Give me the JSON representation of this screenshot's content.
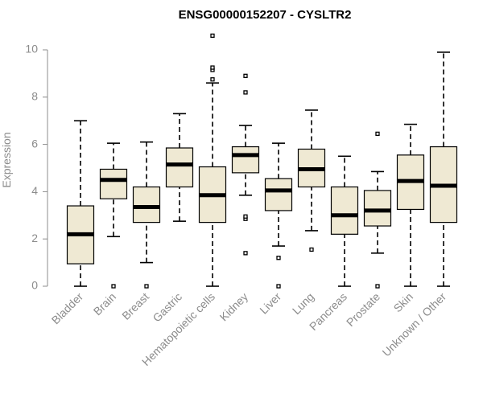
{
  "chart_data": {
    "type": "box",
    "title": "ENSG00000152207 - CYSLTR2",
    "xlabel": "",
    "ylabel": "Expression",
    "ylim": [
      0,
      10
    ],
    "yticks": [
      0,
      2,
      4,
      6,
      8,
      10
    ],
    "box_fill": "#efe9d3",
    "categories": [
      "Bladder",
      "Brain",
      "Breast",
      "Gastric",
      "Hematopoietic cells",
      "Kidney",
      "Liver",
      "Lung",
      "Pancreas",
      "Prostate",
      "Skin",
      "Unknown / Other"
    ],
    "boxes": [
      {
        "category": "Bladder",
        "min": 0.0,
        "q1": 0.95,
        "median": 2.2,
        "q3": 3.4,
        "max": 7.0,
        "outliers": []
      },
      {
        "category": "Brain",
        "min": 2.1,
        "q1": 3.7,
        "median": 4.5,
        "q3": 4.95,
        "max": 6.05,
        "outliers": [
          0.0
        ]
      },
      {
        "category": "Breast",
        "min": 1.0,
        "q1": 2.7,
        "median": 3.35,
        "q3": 4.2,
        "max": 6.1,
        "outliers": [
          0.0
        ]
      },
      {
        "category": "Gastric",
        "min": 2.75,
        "q1": 4.2,
        "median": 5.15,
        "q3": 5.85,
        "max": 7.3,
        "outliers": []
      },
      {
        "category": "Hematopoietic cells",
        "min": 0.0,
        "q1": 2.7,
        "median": 3.85,
        "q3": 5.05,
        "max": 8.6,
        "outliers": [
          8.75,
          9.15,
          9.25,
          10.6
        ]
      },
      {
        "category": "Kidney",
        "min": 3.85,
        "q1": 4.8,
        "median": 5.55,
        "q3": 5.9,
        "max": 6.8,
        "outliers": [
          1.4,
          2.85,
          2.95,
          8.2,
          8.9
        ]
      },
      {
        "category": "Liver",
        "min": 1.7,
        "q1": 3.2,
        "median": 4.05,
        "q3": 4.55,
        "max": 6.05,
        "outliers": [
          0.0,
          1.2
        ]
      },
      {
        "category": "Lung",
        "min": 2.35,
        "q1": 4.2,
        "median": 4.95,
        "q3": 5.8,
        "max": 7.45,
        "outliers": [
          1.55
        ]
      },
      {
        "category": "Pancreas",
        "min": 0.0,
        "q1": 2.2,
        "median": 3.0,
        "q3": 4.2,
        "max": 5.5,
        "outliers": []
      },
      {
        "category": "Prostate",
        "min": 1.4,
        "q1": 2.55,
        "median": 3.2,
        "q3": 4.05,
        "max": 4.85,
        "outliers": [
          0.0,
          6.45
        ]
      },
      {
        "category": "Skin",
        "min": 0.0,
        "q1": 3.25,
        "median": 4.45,
        "q3": 5.55,
        "max": 6.85,
        "outliers": []
      },
      {
        "category": "Unknown / Other",
        "min": 0.0,
        "q1": 2.7,
        "median": 4.25,
        "q3": 5.9,
        "max": 9.9,
        "outliers": []
      }
    ]
  }
}
